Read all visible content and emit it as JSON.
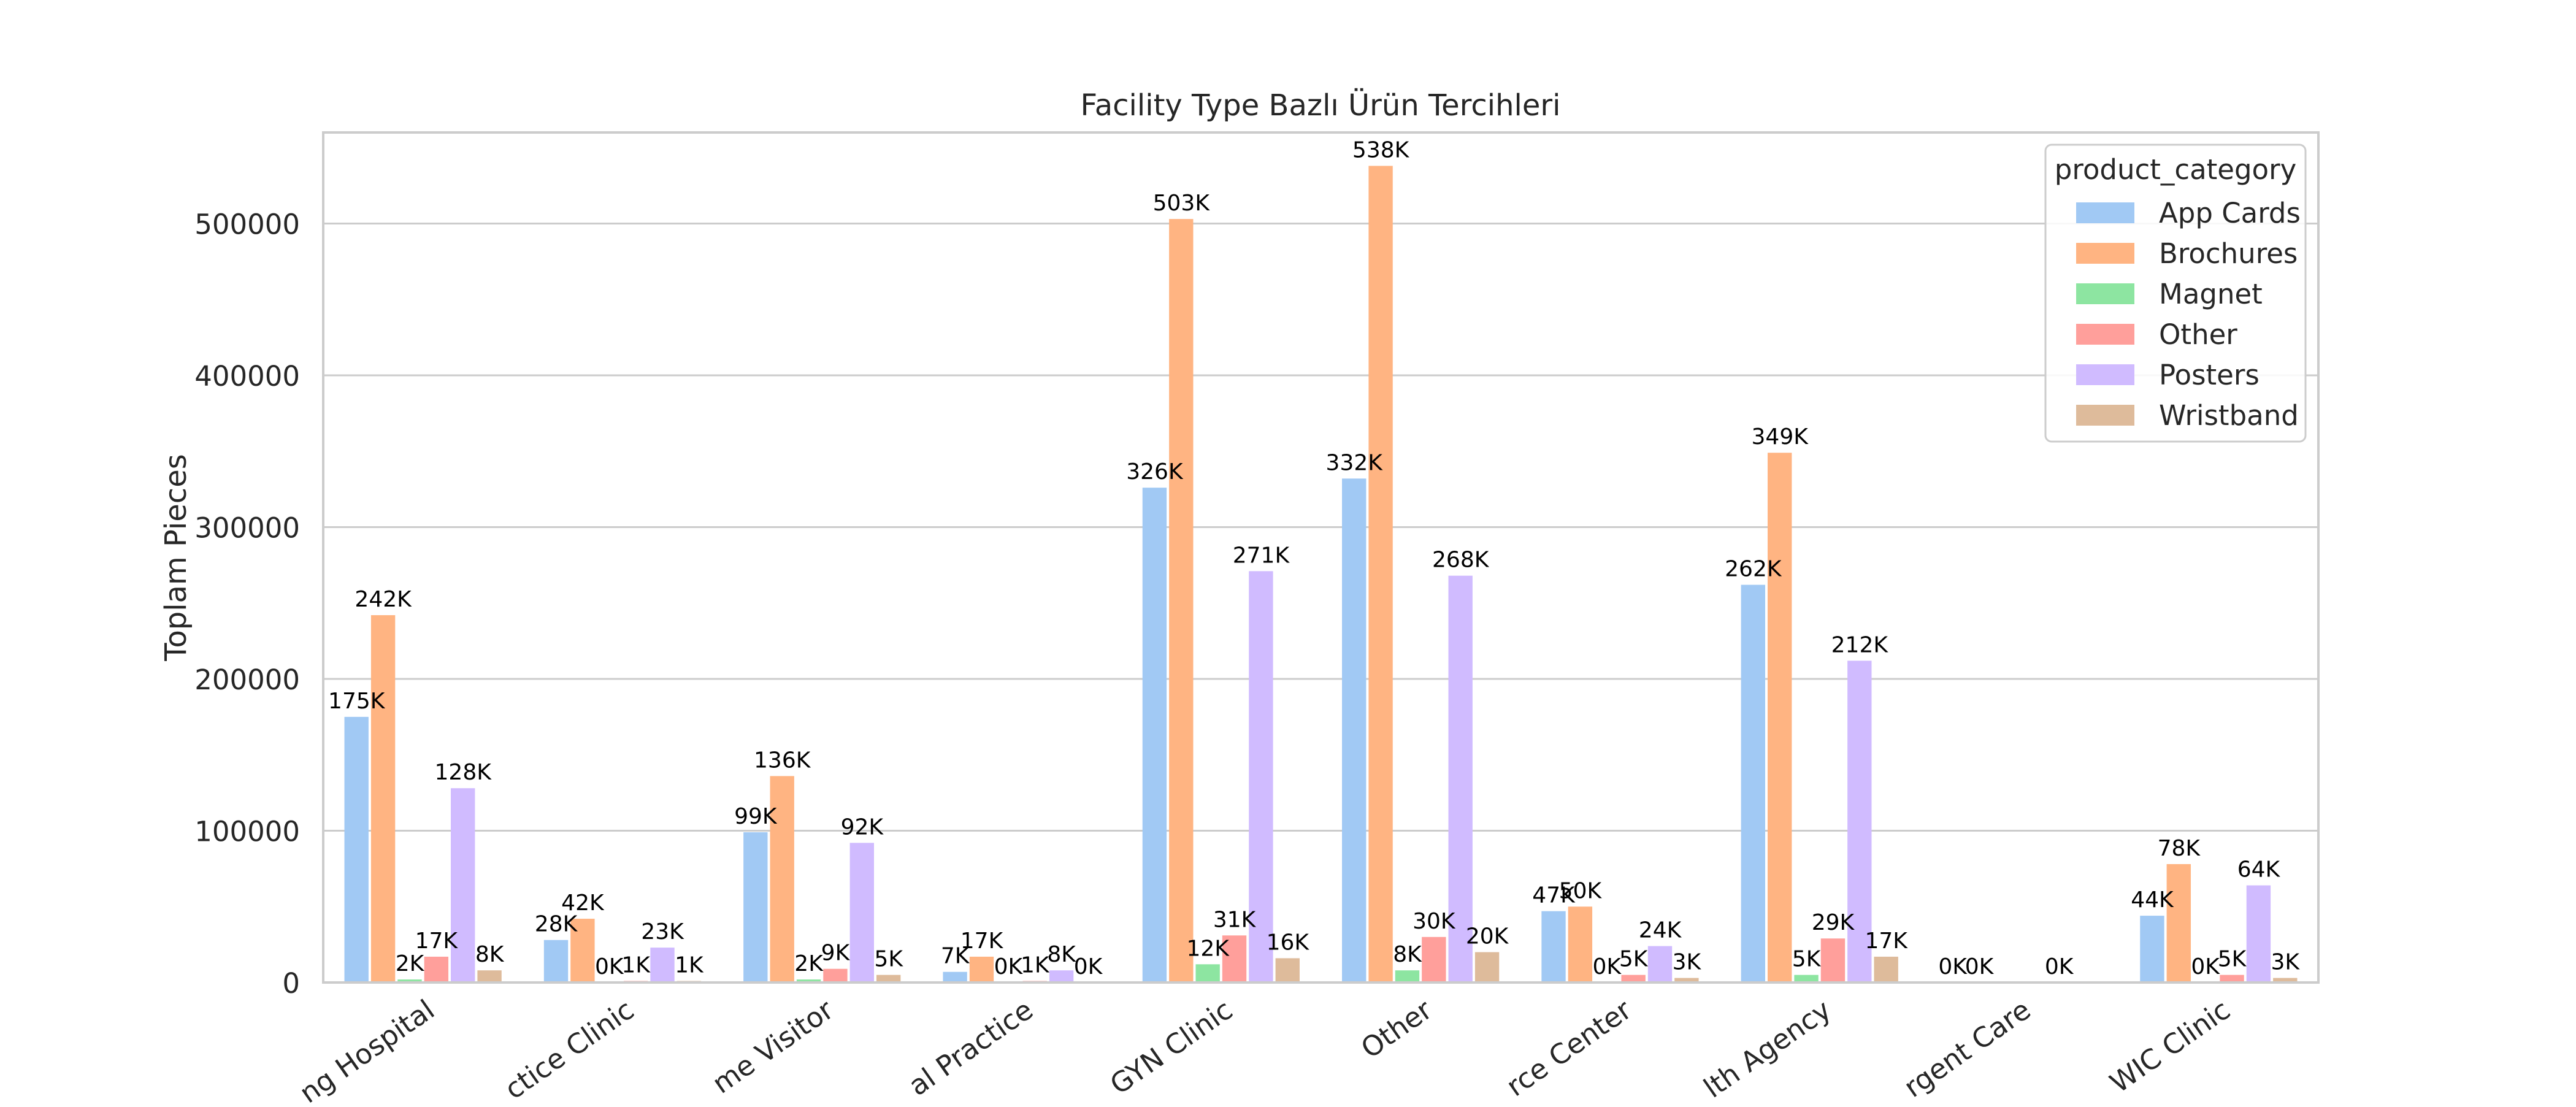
{
  "chart_data": {
    "type": "bar",
    "title": "Facility Type Bazlı Ürün Tercihleri",
    "xlabel": "",
    "ylabel": "Toplam Pieces",
    "ylim": [
      0,
      560000
    ],
    "yticks": [
      0,
      100000,
      200000,
      300000,
      400000,
      500000
    ],
    "grid": true,
    "legend": {
      "title": "product_category",
      "placement": "top-right"
    },
    "categories": [
      "Teaching Hospital",
      "Private Practice Clinic",
      "Home Visitor",
      "Medical Practice",
      "OB/GYN Clinic",
      "Other",
      "Resource Center",
      "Public Health Agency",
      "Urgent Care",
      "WIC Clinic"
    ],
    "category_tick_labels": [
      "ng Hospital",
      "ctice Clinic",
      "me Visitor",
      "al Practice",
      "GYN Clinic",
      "Other",
      "rce Center",
      "lth Agency",
      "rgent Care",
      "WIC Clinic"
    ],
    "series": [
      {
        "name": "App Cards",
        "color": "#a1c9f4",
        "values": [
          175000,
          28000,
          99000,
          7000,
          326000,
          332000,
          47000,
          262000,
          0,
          44000
        ],
        "labels": [
          "175K",
          "28K",
          "99K",
          "7K",
          "326K",
          "332K",
          "47K",
          "262K",
          "0K",
          "44K"
        ]
      },
      {
        "name": "Brochures",
        "color": "#ffb482",
        "values": [
          242000,
          42000,
          136000,
          17000,
          503000,
          538000,
          50000,
          349000,
          0,
          78000
        ],
        "labels": [
          "242K",
          "42K",
          "136K",
          "17K",
          "503K",
          "538K",
          "50K",
          "349K",
          "0K",
          "78K"
        ]
      },
      {
        "name": "Magnet",
        "color": "#8de5a1",
        "values": [
          2000,
          0,
          2000,
          0,
          12000,
          8000,
          0,
          5000,
          null,
          0
        ],
        "labels": [
          "2K",
          "0K",
          "2K",
          "0K",
          "12K",
          "8K",
          "0K",
          "5K",
          null,
          "0K"
        ]
      },
      {
        "name": "Other",
        "color": "#ff9f9b",
        "values": [
          17000,
          1000,
          9000,
          1000,
          31000,
          30000,
          5000,
          29000,
          null,
          5000
        ],
        "labels": [
          "17K",
          "1K",
          "9K",
          "1K",
          "31K",
          "30K",
          "5K",
          "29K",
          null,
          "5K"
        ]
      },
      {
        "name": "Posters",
        "color": "#d0bbff",
        "values": [
          128000,
          23000,
          92000,
          8000,
          271000,
          268000,
          24000,
          212000,
          0,
          64000
        ],
        "labels": [
          "128K",
          "23K",
          "92K",
          "8K",
          "271K",
          "268K",
          "24K",
          "212K",
          "0K",
          "64K"
        ]
      },
      {
        "name": "Wristband",
        "color": "#debb9b",
        "values": [
          8000,
          1000,
          5000,
          0,
          16000,
          20000,
          3000,
          17000,
          null,
          3000
        ],
        "labels": [
          "8K",
          "1K",
          "5K",
          "0K",
          "16K",
          "20K",
          "3K",
          "17K",
          null,
          "3K"
        ]
      }
    ]
  }
}
